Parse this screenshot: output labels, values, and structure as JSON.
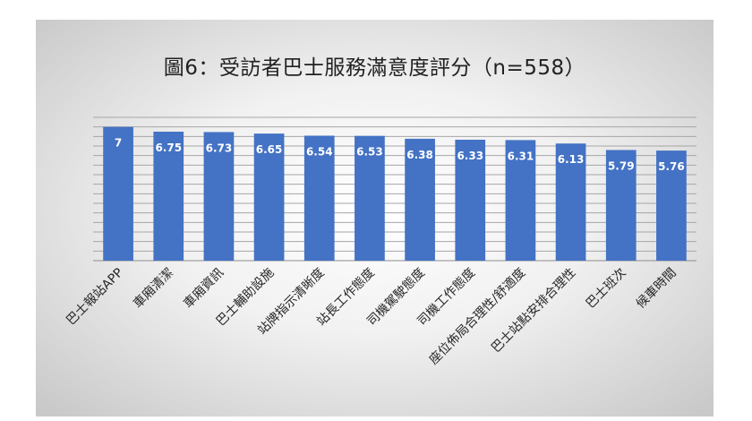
{
  "chart_data": {
    "type": "bar",
    "title": "圖6：受訪者巴士服務滿意度評分（n=558）",
    "categories": [
      "巴士報站APP",
      "車廂清潔",
      "車廂資訊",
      "巴士輔助設施",
      "站牌指示清晰度",
      "站長工作態度",
      "司機駕駛態度",
      "司機工作態度",
      "座位佈局合理性/舒適度",
      "巴士站點安排合理性",
      "巴士班次",
      "候車時間"
    ],
    "values": [
      7,
      6.75,
      6.73,
      6.65,
      6.54,
      6.53,
      6.38,
      6.33,
      6.31,
      6.13,
      5.79,
      5.76
    ],
    "data_labels": [
      "7",
      "6.75",
      "6.73",
      "6.65",
      "6.54",
      "6.53",
      "6.38",
      "6.33",
      "6.31",
      "6.13",
      "5.79",
      "5.76"
    ],
    "xlabel": "",
    "ylabel": "",
    "ylim": [
      0,
      7.5
    ],
    "grid": true,
    "legend": "none",
    "bar_color": "#4472c4",
    "label_color": "#ffffff",
    "gridline_color": "#a6a6a6"
  }
}
